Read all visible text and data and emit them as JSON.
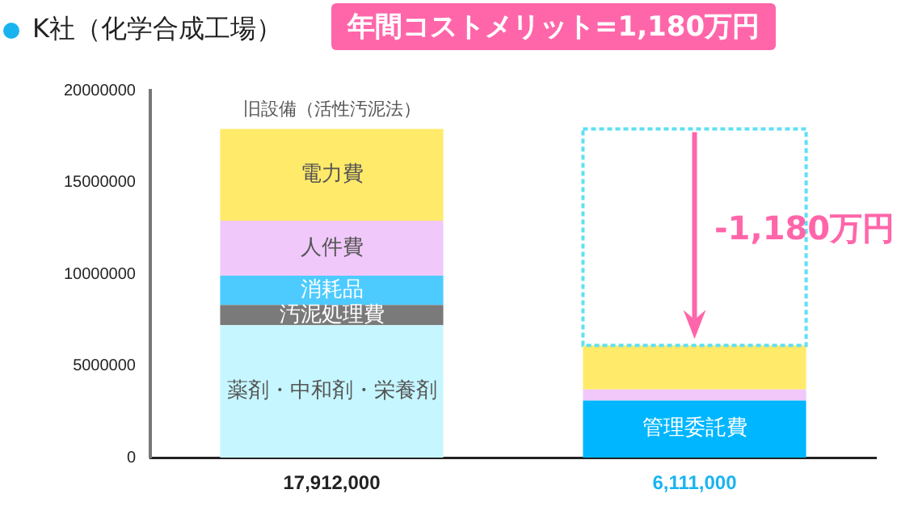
{
  "chart_data": {
    "type": "bar",
    "stacked": true,
    "categories": [
      "旧設備（活性汚泥法）",
      null
    ],
    "totals": [
      "17,912,000",
      "6,111,000"
    ],
    "series": [
      {
        "name": "薬剤・中和剤・栄養剤",
        "color": "#c6f6ff",
        "values": [
          7212000,
          0
        ]
      },
      {
        "name": "汚泥処理費",
        "color": "#7a7a7a",
        "values": [
          1100000,
          0
        ]
      },
      {
        "name": "消耗品",
        "color": "#4dcbff",
        "values": [
          1600000,
          0
        ]
      },
      {
        "name": "管理委託費",
        "color": "#00b6ff",
        "values": [
          0,
          3111000
        ]
      },
      {
        "name": "人件費",
        "color": "#f0c8fa",
        "values": [
          3000000,
          600000
        ]
      },
      {
        "name": "電力費",
        "color": "#ffea6a",
        "values": [
          5000000,
          2400000
        ]
      }
    ],
    "ylim": [
      0,
      20000000
    ],
    "yticks": [
      0,
      5000000,
      10000000,
      15000000,
      20000000
    ],
    "grid": false,
    "legend": false,
    "annotations": [
      "K社（化学合成工場）",
      "年間コストメリット=1,180万円",
      "-1,180万円"
    ]
  }
}
